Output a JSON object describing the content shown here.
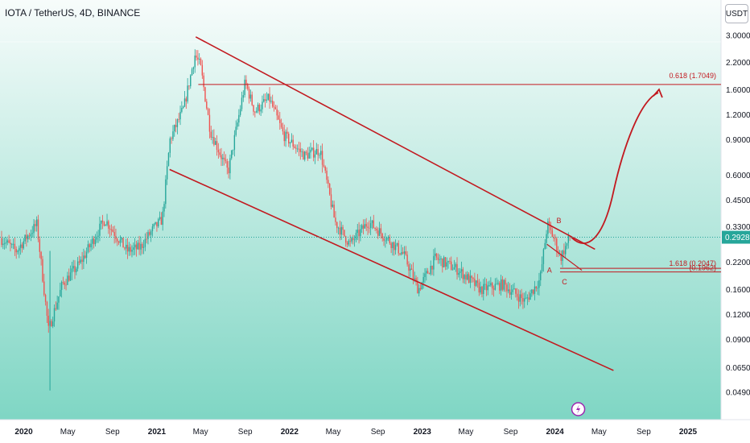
{
  "header": {
    "title": "IOTA / TetherUS, 4D, BINANCE",
    "currency_label": "USDT"
  },
  "colors": {
    "background_top": "#f7fcfb",
    "background_bottom": "#7fd6c4",
    "up": "#26a69a",
    "down": "#ef5350",
    "drawing": "#c2191f",
    "price_badge": "#26a69a"
  },
  "chart_data": {
    "type": "candlestick",
    "y_scale": "log",
    "y_ticks": [
      "3.0000",
      "2.2000",
      "1.6000",
      "1.2000",
      "0.9000",
      "0.6000",
      "0.4500",
      "0.3300",
      "0.2200",
      "0.1600",
      "0.1200",
      "0.0900",
      "0.0650",
      "0.0490"
    ],
    "x_ticks": [
      "2020",
      "May",
      "Sep",
      "2021",
      "May",
      "Sep",
      "2022",
      "May",
      "Sep",
      "2023",
      "May",
      "Sep",
      "2024",
      "May",
      "Sep",
      "2025"
    ],
    "last_price": "0.2928",
    "price_path": [
      {
        "date": "2019-11-01",
        "price": 0.29
      },
      {
        "date": "2019-12-15",
        "price": 0.25
      },
      {
        "date": "2020-02-10",
        "price": 0.34
      },
      {
        "date": "2020-03-13",
        "price": 0.1
      },
      {
        "date": "2020-04-20",
        "price": 0.17
      },
      {
        "date": "2020-06-10",
        "price": 0.22
      },
      {
        "date": "2020-08-15",
        "price": 0.36
      },
      {
        "date": "2020-10-15",
        "price": 0.25
      },
      {
        "date": "2020-11-20",
        "price": 0.26
      },
      {
        "date": "2020-12-25",
        "price": 0.32
      },
      {
        "date": "2021-01-20",
        "price": 0.36
      },
      {
        "date": "2021-02-10",
        "price": 0.9
      },
      {
        "date": "2021-03-20",
        "price": 1.3
      },
      {
        "date": "2021-04-20",
        "price": 2.4
      },
      {
        "date": "2021-05-05",
        "price": 2.1
      },
      {
        "date": "2021-06-01",
        "price": 1.0
      },
      {
        "date": "2021-07-20",
        "price": 0.62
      },
      {
        "date": "2021-09-05",
        "price": 1.75
      },
      {
        "date": "2021-10-01",
        "price": 1.25
      },
      {
        "date": "2021-11-10",
        "price": 1.45
      },
      {
        "date": "2021-12-20",
        "price": 0.95
      },
      {
        "date": "2022-02-15",
        "price": 0.75
      },
      {
        "date": "2022-03-30",
        "price": 0.8
      },
      {
        "date": "2022-05-10",
        "price": 0.35
      },
      {
        "date": "2022-06-20",
        "price": 0.27
      },
      {
        "date": "2022-08-10",
        "price": 0.35
      },
      {
        "date": "2022-09-20",
        "price": 0.3
      },
      {
        "date": "2022-11-15",
        "price": 0.24
      },
      {
        "date": "2022-12-25",
        "price": 0.16
      },
      {
        "date": "2023-02-10",
        "price": 0.23
      },
      {
        "date": "2023-04-15",
        "price": 0.2
      },
      {
        "date": "2023-06-15",
        "price": 0.16
      },
      {
        "date": "2023-08-15",
        "price": 0.17
      },
      {
        "date": "2023-10-15",
        "price": 0.14
      },
      {
        "date": "2023-11-25",
        "price": 0.18
      },
      {
        "date": "2023-12-15",
        "price": 0.34
      },
      {
        "date": "2024-01-05",
        "price": 0.28
      },
      {
        "date": "2024-01-20",
        "price": 0.23
      },
      {
        "date": "2024-02-15",
        "price": 0.2928
      }
    ],
    "annotations": {
      "fib_upper_label": "0.618 (1.7049)",
      "fib_upper_value": 1.7049,
      "fib_lower_label": "1.618 (0.2047)",
      "fib_lower_label_2": "(0.1962)",
      "fib_lower_values": [
        0.2047,
        0.1962
      ],
      "wave_labels": [
        "A",
        "B",
        "C"
      ]
    }
  }
}
